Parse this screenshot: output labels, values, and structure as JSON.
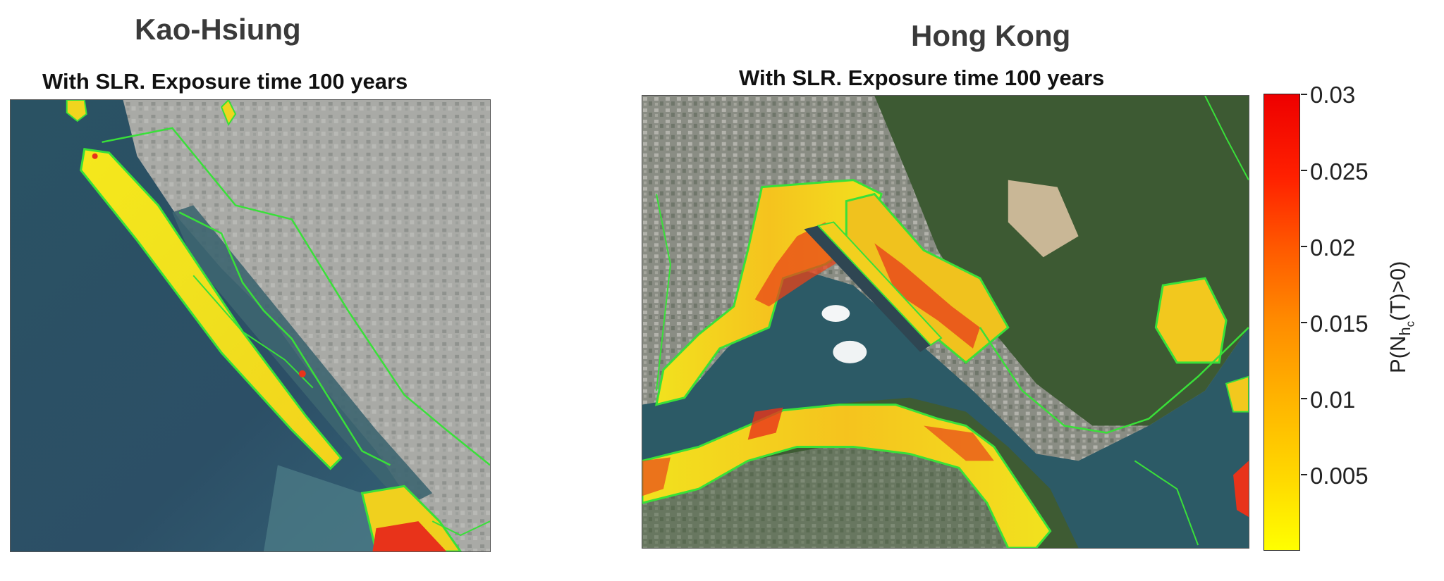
{
  "panels": {
    "left": {
      "city": "Kao-Hsiung",
      "subtitle": "With SLR. Exposure time 100 years"
    },
    "right": {
      "city": "Hong Kong",
      "subtitle": "With SLR. Exposure time 100 years"
    }
  },
  "colorbar": {
    "title_prefix": "P(N",
    "title_sub1": "h",
    "title_sub2": "c",
    "title_suffix": "(T)>0)",
    "ticks": [
      "0.03",
      "0.025",
      "0.02",
      "0.015",
      "0.01",
      "0.005"
    ],
    "range": [
      0,
      0.03
    ],
    "colormap": [
      "#ffff00",
      "#ffb400",
      "#ff8c00",
      "#ff2000",
      "#ee0000"
    ]
  },
  "colors": {
    "sea": "#2f5e6e",
    "land_urban": "#a3a6a2",
    "land_green": "#3f5b34",
    "contour": "#39e039",
    "hazard_low": "#f2ea22",
    "hazard_high": "#e8331a"
  }
}
